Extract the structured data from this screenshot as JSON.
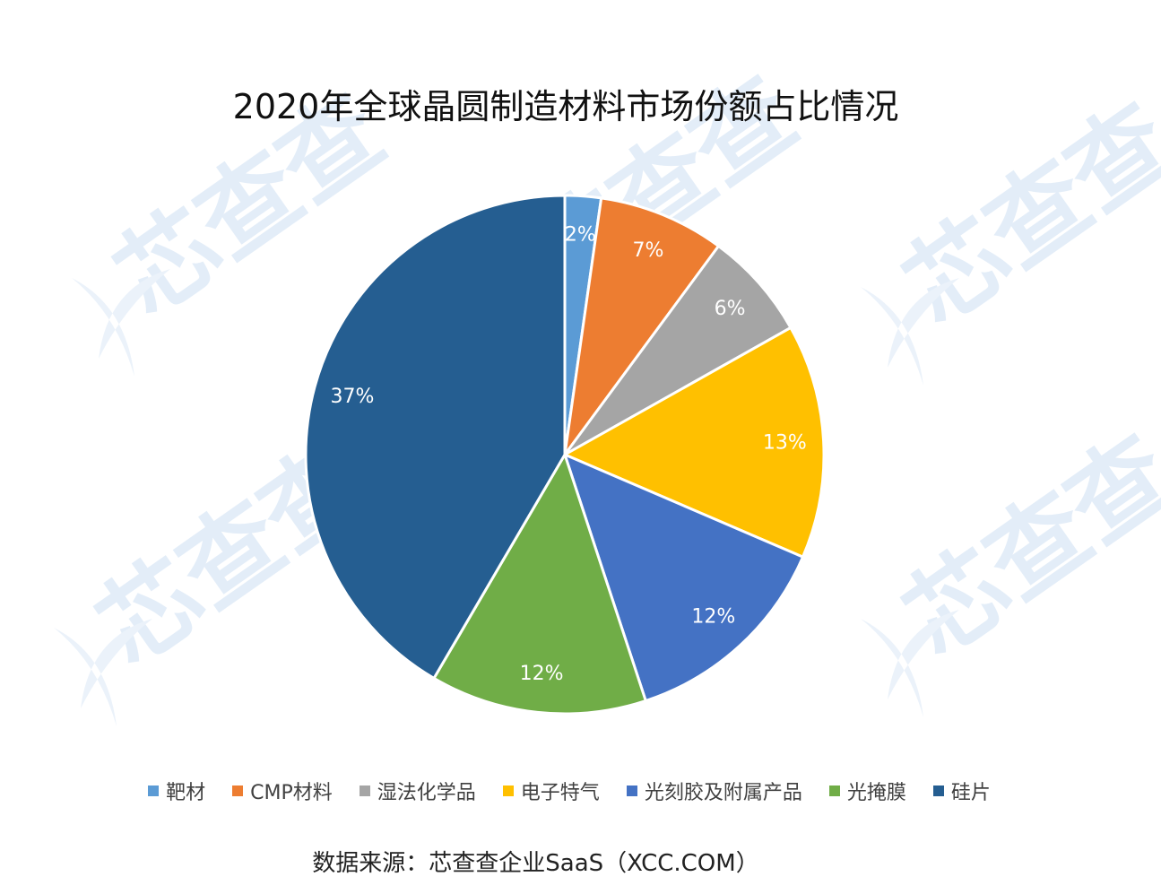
{
  "chart_data": {
    "type": "pie",
    "title": "2020年全球晶圆制造材料市场份额占比情况",
    "categories": [
      "靶材",
      "CMP材料",
      "湿法化学品",
      "电子特气",
      "光刻胶及附属产品",
      "光掩膜",
      "硅片"
    ],
    "values": [
      2,
      7,
      6,
      13,
      12,
      12,
      37
    ],
    "labels": [
      "2%",
      "7%",
      "6%",
      "13%",
      "12%",
      "12%",
      "37%"
    ],
    "colors": [
      "#5B9BD5",
      "#ED7D31",
      "#A5A5A5",
      "#FFC000",
      "#4472C4",
      "#70AD47",
      "#255E91"
    ],
    "legend_position": "bottom",
    "start_angle": "top",
    "direction": "clockwise"
  },
  "source_text": "数据来源：芯查查企业SaaS（XCC.COM）",
  "watermark": {
    "text": "芯查查",
    "logo": "xcc-logo",
    "color": "#DCE9F7"
  }
}
